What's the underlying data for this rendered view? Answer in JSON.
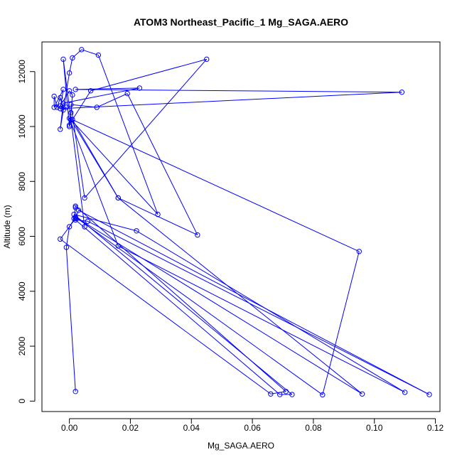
{
  "chart_data": {
    "type": "line",
    "title": "ATOM3 Northeast_Pacific_1 Mg_SAGA.AERO",
    "xlabel": "Mg_SAGA.AERO",
    "ylabel": "Altitude (m)",
    "xlim": [
      -0.009,
      0.1215
    ],
    "ylim": [
      -380,
      13080
    ],
    "x_ticks": [
      0.0,
      0.02,
      0.04,
      0.06,
      0.08,
      0.1,
      0.12
    ],
    "x_tick_labels": [
      "0.00",
      "0.02",
      "0.04",
      "0.06",
      "0.08",
      "0.10",
      "0.12"
    ],
    "y_ticks": [
      0,
      2000,
      4000,
      6000,
      8000,
      10000,
      12000
    ],
    "y_tick_labels": [
      "0",
      "2000",
      "4000",
      "6000",
      "8000",
      "10000",
      "12000"
    ],
    "grid": false,
    "legend": "none",
    "colors": {
      "series": "#0000ff",
      "axis": "#000000",
      "background": "#ffffff"
    },
    "series": [
      {
        "marker": "open-circle",
        "x": [
          0.002,
          -0.001,
          0.0,
          0.002,
          0.0015,
          0.002,
          0.002,
          0.071,
          0.066,
          -0.003,
          0.002,
          0.003,
          0.118,
          0.006,
          0.002,
          0.069,
          0.073,
          0.0015,
          0.022,
          0.11,
          0.016,
          0.0,
          0.095,
          0.083,
          0.002,
          0.096,
          0.016,
          0.001,
          0.007,
          0.045,
          0.005,
          0.0005,
          0.009,
          0.019,
          0.042,
          0.016,
          0.0005,
          0.0,
          0.0005,
          0.001,
          0.0,
          -0.003,
          -0.001,
          -0.002,
          -0.003,
          -0.004,
          -0.005,
          -0.005,
          -0.002,
          -0.003,
          0.109,
          0.002,
          0.023,
          -0.002,
          -0.003,
          0.0,
          0.001,
          0.004,
          0.0095,
          0.029,
          0.0005,
          0.0,
          -0.002,
          0.005
        ],
        "y": [
          350,
          5600,
          6350,
          6700,
          6650,
          7050,
          7100,
          350,
          260,
          5900,
          6650,
          6950,
          240,
          6550,
          6600,
          240,
          240,
          6800,
          6200,
          320,
          5650,
          10300,
          5450,
          230,
          6700,
          260,
          7400,
          10250,
          11300,
          12450,
          7400,
          10800,
          10700,
          11200,
          6050,
          7400,
          10250,
          10050,
          10500,
          11150,
          11300,
          10750,
          10700,
          10600,
          11050,
          10700,
          11100,
          10700,
          11350,
          10650,
          11250,
          11350,
          11400,
          10850,
          9900,
          11950,
          12500,
          12800,
          12600,
          6800,
          10250,
          10000,
          12450,
          6350
        ]
      }
    ]
  }
}
